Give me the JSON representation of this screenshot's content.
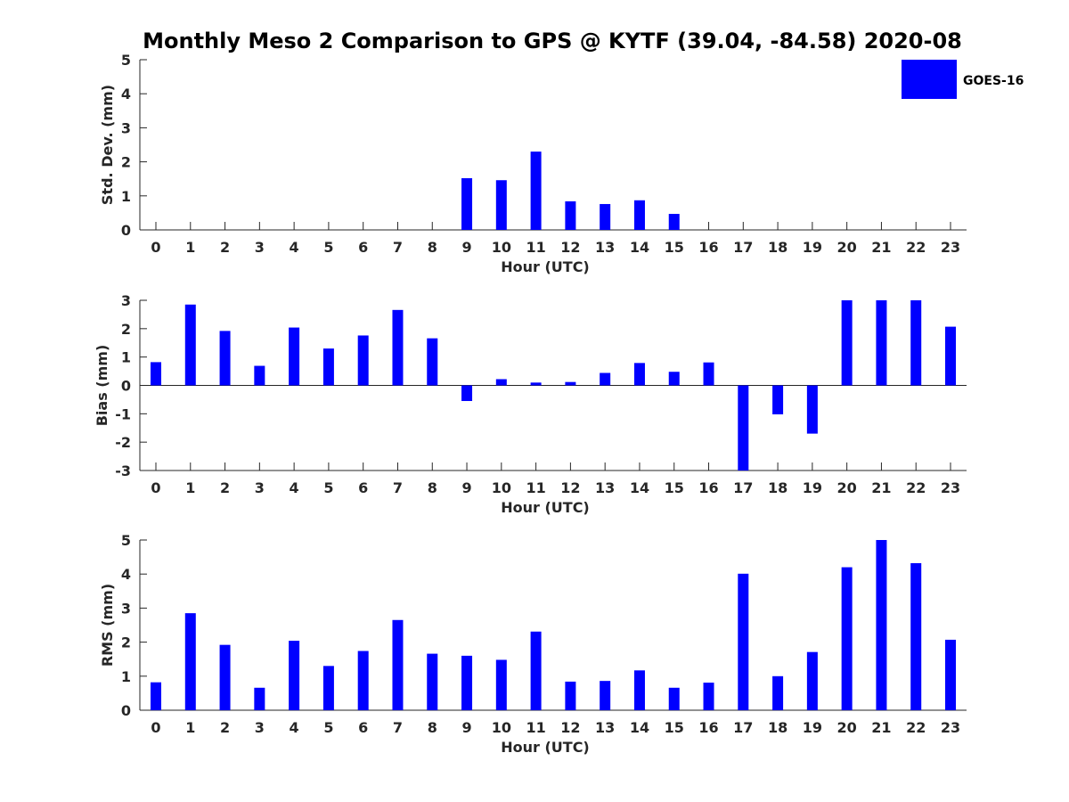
{
  "figure": {
    "title": "Monthly Meso 2 Comparison to GPS @ KYTF (39.04, -84.58) 2020-08",
    "legend": {
      "label": "GOES-16",
      "color": "#0000FF"
    }
  },
  "chart_data": [
    {
      "type": "bar",
      "title": "Monthly Meso 2 Comparison to GPS @ KYTF (39.04, -84.58) 2020-08",
      "xlabel": "Hour (UTC)",
      "ylabel": "Std. Dev. (mm)",
      "ylim": [
        0,
        5
      ],
      "yticks": [
        0,
        1,
        2,
        3,
        4,
        5
      ],
      "categories": [
        "0",
        "1",
        "2",
        "3",
        "4",
        "5",
        "6",
        "7",
        "8",
        "9",
        "10",
        "11",
        "12",
        "13",
        "14",
        "15",
        "16",
        "17",
        "18",
        "19",
        "20",
        "21",
        "22",
        "23"
      ],
      "series": [
        {
          "name": "GOES-16",
          "color": "#0000FF",
          "values": [
            0,
            0,
            0,
            0,
            0,
            0,
            0,
            0,
            0,
            1.52,
            1.46,
            2.3,
            0.84,
            0.76,
            0.87,
            0.47,
            0,
            0,
            0,
            0,
            0,
            0,
            0,
            0
          ]
        }
      ],
      "legend": "top-right"
    },
    {
      "type": "bar",
      "xlabel": "Hour (UTC)",
      "ylabel": "Bias (mm)",
      "ylim": [
        -3,
        3
      ],
      "yticks": [
        -3,
        -2,
        -1,
        0,
        1,
        2,
        3
      ],
      "categories": [
        "0",
        "1",
        "2",
        "3",
        "4",
        "5",
        "6",
        "7",
        "8",
        "9",
        "10",
        "11",
        "12",
        "13",
        "14",
        "15",
        "16",
        "17",
        "18",
        "19",
        "20",
        "21",
        "22",
        "23"
      ],
      "series": [
        {
          "name": "GOES-16",
          "color": "#0000FF",
          "values": [
            0.82,
            2.85,
            1.92,
            0.69,
            2.04,
            1.3,
            1.76,
            2.66,
            1.66,
            -0.55,
            0.22,
            0.1,
            0.12,
            0.44,
            0.79,
            0.48,
            0.81,
            -3.0,
            -1.02,
            -1.7,
            3.0,
            3.0,
            3.0,
            2.07
          ]
        }
      ]
    },
    {
      "type": "bar",
      "xlabel": "Hour (UTC)",
      "ylabel": "RMS (mm)",
      "ylim": [
        0,
        5
      ],
      "yticks": [
        0,
        1,
        2,
        3,
        4,
        5
      ],
      "categories": [
        "0",
        "1",
        "2",
        "3",
        "4",
        "5",
        "6",
        "7",
        "8",
        "9",
        "10",
        "11",
        "12",
        "13",
        "14",
        "15",
        "16",
        "17",
        "18",
        "19",
        "20",
        "21",
        "22",
        "23"
      ],
      "series": [
        {
          "name": "GOES-16",
          "color": "#0000FF",
          "values": [
            0.82,
            2.85,
            1.92,
            0.66,
            2.04,
            1.3,
            1.74,
            2.65,
            1.66,
            1.6,
            1.48,
            2.31,
            0.84,
            0.86,
            1.17,
            0.66,
            0.81,
            4.01,
            1.0,
            1.71,
            4.2,
            5.0,
            4.32,
            2.07
          ]
        }
      ]
    }
  ]
}
